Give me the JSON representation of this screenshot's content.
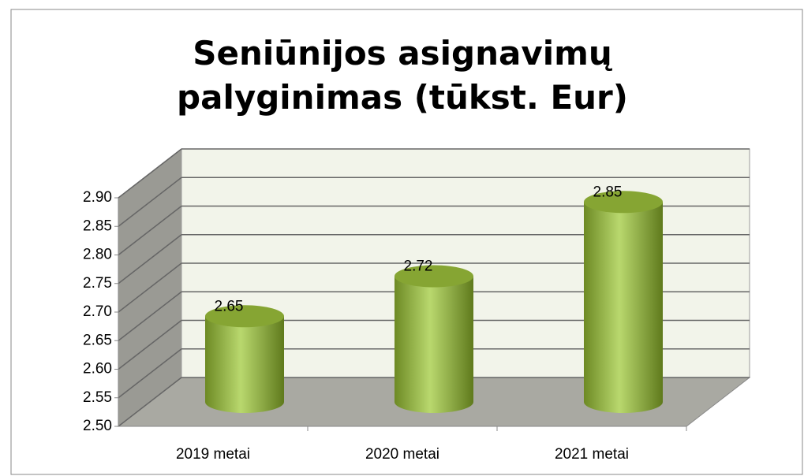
{
  "chart_data": {
    "type": "bar3d",
    "title": "Seniūnijos asignavimų palyginimas (tūkst. Eur)",
    "categories": [
      "2019 metai",
      "2020 metai",
      "2021 metai"
    ],
    "values": [
      2.65,
      2.72,
      2.85
    ],
    "color": "#9bbb59",
    "ylim": [
      2.5,
      2.9
    ],
    "yticks": [
      {
        "value": 2.5,
        "label": "2.50"
      },
      2.55,
      {
        "value": 2.6,
        "label": "2.60"
      },
      2.65,
      {
        "value": 2.7,
        "label": "2.70"
      },
      2.75,
      {
        "value": 2.8,
        "label": "2.80"
      },
      2.85,
      {
        "value": 2.9,
        "label": "2.90"
      }
    ],
    "grid": true
  }
}
